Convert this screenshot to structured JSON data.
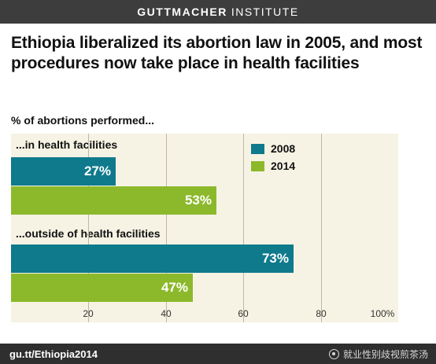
{
  "header": {
    "brand": "GUTTMACHER",
    "institute": "INSTITUTE"
  },
  "chart_data": {
    "type": "bar",
    "orientation": "horizontal",
    "title": "Ethiopia liberalized its abortion law in 2005, and most procedures now take place in health facilities",
    "subtitle": "% of abortions performed...",
    "categories": [
      "...in health facilities",
      "...outside of health facilities"
    ],
    "series": [
      {
        "name": "2008",
        "color": "#0f7a8c",
        "values": [
          27,
          73
        ],
        "labels": [
          "27%",
          "73%"
        ]
      },
      {
        "name": "2014",
        "color": "#8cb92b",
        "values": [
          53,
          47
        ],
        "labels": [
          "53%",
          "47%"
        ]
      }
    ],
    "xlim": [
      0,
      100
    ],
    "ticks": [
      {
        "value": 20,
        "label": "20"
      },
      {
        "value": 40,
        "label": "40"
      },
      {
        "value": 60,
        "label": "60"
      },
      {
        "value": 80,
        "label": "80"
      },
      {
        "value": 100,
        "label": "100%"
      }
    ],
    "grid": true,
    "legend_position": "top-right"
  },
  "footer": {
    "url": "gu.tt/Ethiopia2014",
    "watermark": "就业性别歧视煎茶汤",
    "watermark_icon": "weibo-icon"
  }
}
